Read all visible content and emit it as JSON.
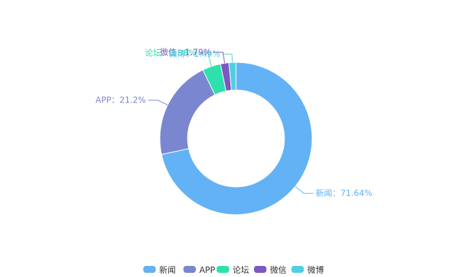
{
  "chart_data": {
    "type": "pie",
    "variant": "donut",
    "categories": [
      "新闻",
      "APP",
      "论坛",
      "微信",
      "微博"
    ],
    "values": [
      71.64,
      21.2,
      3.88,
      1.79,
      1.49
    ],
    "value_unit": "%",
    "label_separator": "：",
    "colors": [
      "#63b2f6",
      "#7a87d0",
      "#2ee0ac",
      "#7e57c2",
      "#4dd0e1"
    ],
    "legend_placement": "bottom-center",
    "legend_text_color": "#333333",
    "start_angle_deg": 90,
    "direction": "clockwise"
  }
}
